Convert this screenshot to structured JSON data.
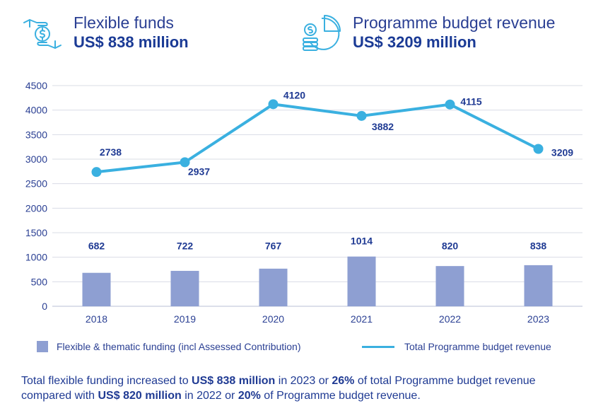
{
  "kpis": [
    {
      "label": "Flexible funds",
      "value": "US$ 838 million",
      "icon": "hands-money-icon"
    },
    {
      "label": "Programme budget revenue",
      "value": "US$ 3209 million",
      "icon": "coins-pie-chart-icon"
    }
  ],
  "colors": {
    "bar": "#8e9fd2",
    "line": "#3ab0e0",
    "text": "#1f3a93",
    "grid": "#d9dce6"
  },
  "chart_data": {
    "type": "bar",
    "categories": [
      "2018",
      "2019",
      "2020",
      "2021",
      "2022",
      "2023"
    ],
    "ylim": [
      0,
      4500
    ],
    "yticks": [
      "0",
      "500",
      "1000",
      "1500",
      "2000",
      "2500",
      "3000",
      "3500",
      "4000",
      "4500"
    ],
    "grid": true,
    "legend_position": "bottom",
    "series": [
      {
        "name": "Flexible & thematic funding (incl Assessed Contribution)",
        "type": "bar",
        "values": [
          682,
          722,
          767,
          1014,
          820,
          838
        ],
        "labels": [
          "682",
          "722",
          "767",
          "1014",
          "820",
          "838"
        ]
      },
      {
        "name": "Total Programme budget revenue",
        "type": "line",
        "values": [
          2738,
          2937,
          4120,
          3882,
          4115,
          3209
        ],
        "labels": [
          "2738",
          "2937",
          "4120",
          "3882",
          "4115",
          "3209"
        ]
      }
    ]
  },
  "footnote": {
    "p1": "Total flexible funding increased to ",
    "b1": "US$ 838 million",
    "p2": " in 2023 or ",
    "b2": "26%",
    "p3": " of total Programme budget revenue compared with ",
    "b3": "US$ 820 million",
    "p4": " in 2022 or ",
    "b4": "20%",
    "p5": " of Programme budget revenue."
  }
}
